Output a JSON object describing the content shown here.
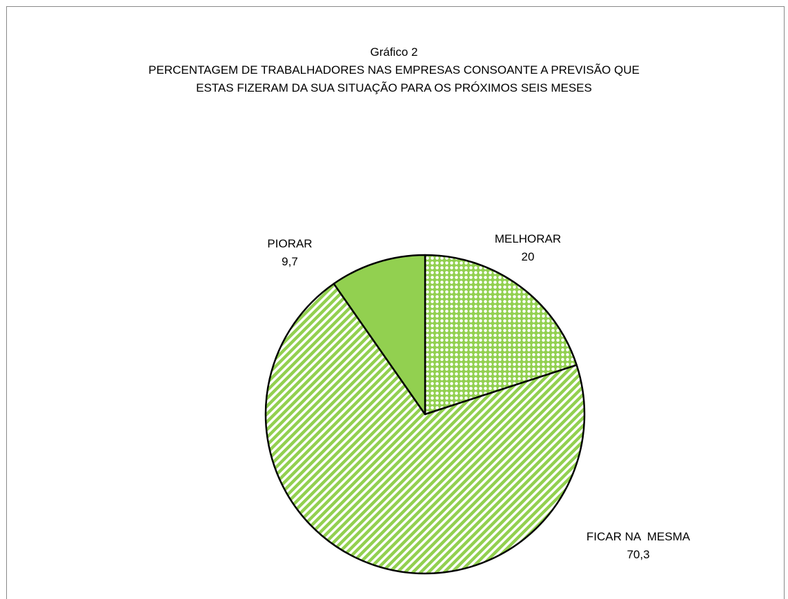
{
  "chart_data": {
    "type": "pie",
    "title": "Gráfico 2",
    "subtitle": [
      "PERCENTAGEM DE TRABALHADORES NAS EMPRESAS CONSOANTE A PREVISÃO QUE",
      "ESTAS FIZERAM DA SUA SITUAÇÃO PARA OS PRÓXIMOS SEIS MESES"
    ],
    "categories": [
      "MELHORAR",
      "FICAR NA  MESMA",
      "PIORAR"
    ],
    "values": [
      20,
      70.3,
      9.7
    ],
    "value_labels": [
      "20",
      "70,3",
      "9,7"
    ],
    "colors": [
      "#92d050",
      "#92d050",
      "#92d050"
    ],
    "patterns": [
      "dots",
      "stripes",
      "solid"
    ]
  }
}
